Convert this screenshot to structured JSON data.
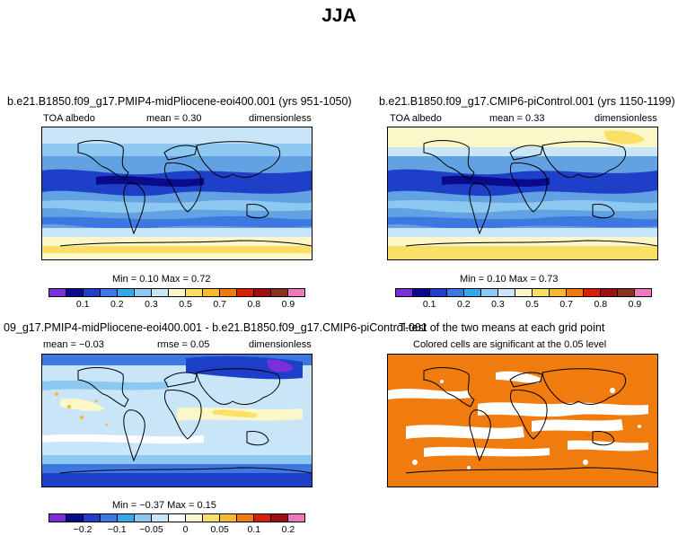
{
  "title": "JJA",
  "panels": {
    "p1": {
      "title": "b.e21.B1850.f09_g17.PMIP4-midPliocene-eoi400.001 (yrs 951-1050)",
      "variable": "TOA albedo",
      "mean": "mean =    0.30",
      "units": "dimensionless",
      "minmax": "Min =    0.10  Max =     0.72"
    },
    "p2": {
      "title": "b.e21.B1850.f09_g17.CMIP6-piControl.001 (yrs 1150-1199)",
      "variable": "TOA albedo",
      "mean": "mean =    0.33",
      "units": "dimensionless",
      "minmax": "Min =    0.10  Max =     0.73"
    },
    "p3": {
      "title": "09_g17.PMIP4-midPliocene-eoi400.001 - b.e21.B1850.f09_g17.CMIP6-piControl.001",
      "mean": "mean =   −0.03",
      "rmse": "rmse =    0.05",
      "units": "dimensionless",
      "minmax": "Min =   −0.37  Max =     0.15"
    },
    "p4": {
      "title": "T-test of the two means at each grid point",
      "subtitle": "Colored cells are significant at the 0.05 level"
    }
  },
  "colorbars": {
    "abs": {
      "colors": [
        "#7b2fdb",
        "#0a0a8c",
        "#1e40c8",
        "#3c78e0",
        "#34a8e8",
        "#8cc8f0",
        "#c8e6f8",
        "#fbf7c8",
        "#fbe068",
        "#f8b830",
        "#f07c10",
        "#d82008",
        "#a01010",
        "#8c3020",
        "#f078c0"
      ],
      "ticks": [
        "0.1",
        "0.2",
        "0.3",
        "0.5",
        "0.7",
        "0.8",
        "0.9"
      ]
    },
    "diff": {
      "colors": [
        "#7b2fdb",
        "#0a0a8c",
        "#1e40c8",
        "#3c78e0",
        "#34a8e8",
        "#8cc8f0",
        "#c8e6f8",
        "#ffffff",
        "#fbf7c8",
        "#fbe068",
        "#f8b830",
        "#f07c10",
        "#d82008",
        "#a01010",
        "#f078c0"
      ],
      "ticks": [
        "−0.2",
        "−0.1",
        "−0.05",
        "0",
        "0.05",
        "0.1",
        "0.2"
      ]
    }
  }
}
